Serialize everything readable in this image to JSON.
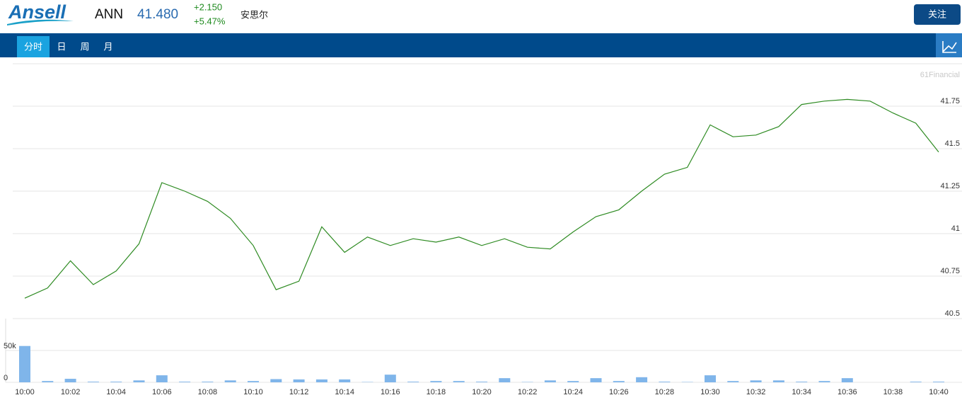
{
  "header": {
    "logo": "Ansell",
    "symbol": "ANN",
    "price": "41.480",
    "change": "+2.150",
    "change_pct": "+5.47%",
    "name": "安思尔",
    "follow_button": "关注"
  },
  "tabs": [
    "分时",
    "日",
    "周",
    "月"
  ],
  "watermark": "61Financial",
  "chart_data": [
    {
      "type": "line",
      "color": "#2e8b22",
      "categories": [
        "10:00",
        null,
        "10:02",
        null,
        "10:04",
        null,
        "10:06",
        null,
        "10:08",
        null,
        "10:10",
        null,
        "10:12",
        null,
        "10:14",
        null,
        "10:16",
        null,
        "10:18",
        null,
        "10:20",
        null,
        "10:22",
        null,
        "10:24",
        null,
        "10:26",
        null,
        "10:28",
        null,
        "10:30",
        null,
        "10:32",
        null,
        "10:34",
        null,
        "10:36",
        null,
        "10:38",
        null,
        "10:40"
      ],
      "values": [
        40.62,
        40.68,
        40.84,
        40.7,
        40.78,
        40.94,
        41.3,
        41.25,
        41.19,
        41.09,
        40.93,
        40.67,
        40.72,
        41.04,
        40.89,
        40.98,
        40.93,
        40.97,
        40.95,
        40.98,
        40.93,
        40.97,
        40.92,
        40.91,
        41.01,
        41.1,
        41.14,
        41.25,
        41.35,
        41.39,
        41.64,
        41.57,
        41.58,
        41.63,
        41.76,
        41.78,
        41.79,
        41.78,
        41.71,
        41.65,
        41.48
      ],
      "ylim": [
        40.5,
        42
      ],
      "yticks": [
        40.5,
        40.75,
        41,
        41.25,
        41.5,
        41.75
      ],
      "grid": true
    },
    {
      "type": "bar",
      "color": "#7fb5ea",
      "values": [
        57000,
        2000,
        5500,
        1000,
        1000,
        3000,
        11000,
        1000,
        1000,
        3000,
        2000,
        5000,
        4500,
        4500,
        4500,
        500,
        12000,
        1000,
        2000,
        2000,
        1000,
        6500,
        500,
        3000,
        2000,
        6500,
        2000,
        8000,
        1000,
        500,
        11000,
        2000,
        3000,
        3000,
        1000,
        2000,
        6500,
        0,
        0,
        1000,
        1000
      ],
      "ylim": [
        0,
        100000
      ],
      "yticks": [
        0,
        {
          "value": 50000,
          "label": "50k"
        }
      ],
      "grid": true
    }
  ]
}
